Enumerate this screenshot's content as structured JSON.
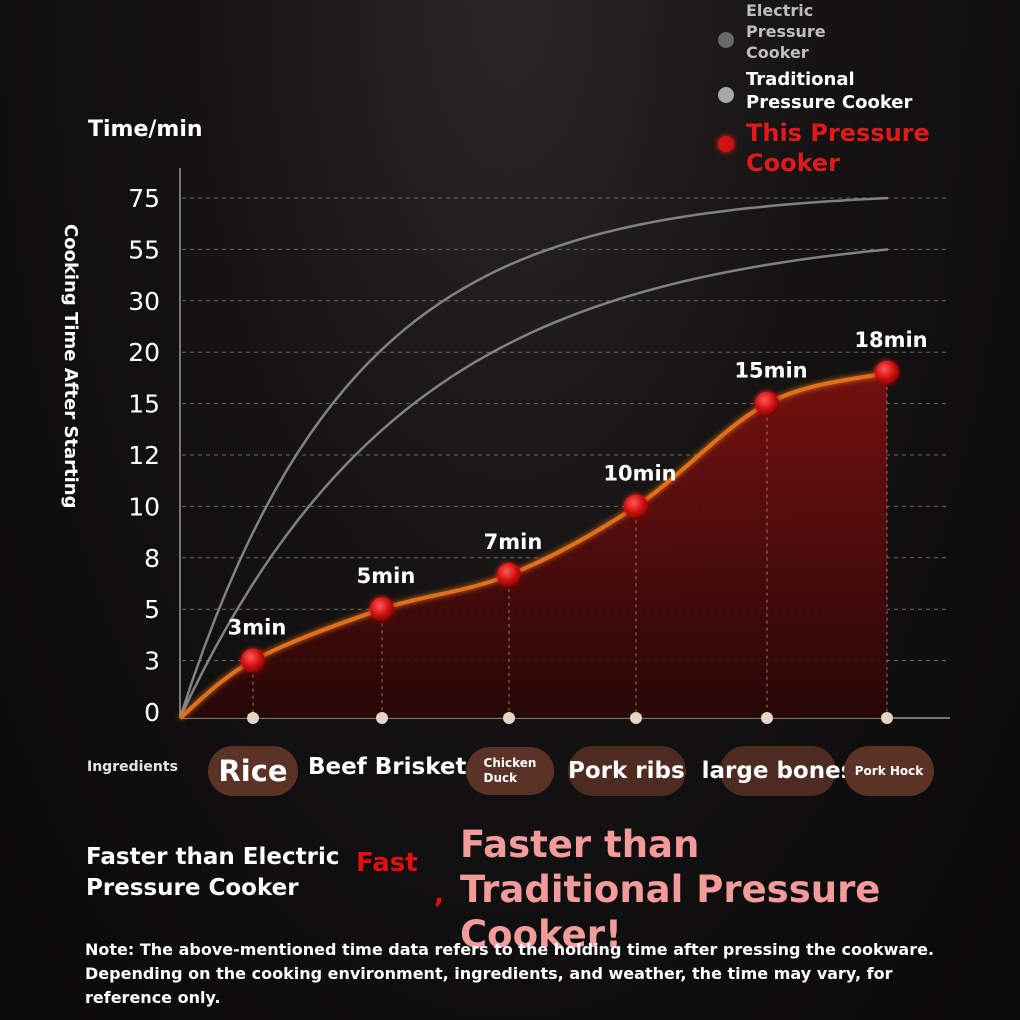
{
  "legend": [
    {
      "label": "Electric Pressure Cooker",
      "color": "#9a9a9a",
      "text_color": "#bfbfbf"
    },
    {
      "label": "Traditional Pressure Cooker",
      "color": "#c8c8c8",
      "text_color": "#ffffff"
    },
    {
      "label": "This Pressure Cooker",
      "color": "#d01010",
      "text_color": "#e01a1a"
    }
  ],
  "chart_data": {
    "type": "line",
    "ylabel_top": "Time/min",
    "ylabel_side": "Cooking Time After Starting",
    "y_ticks": [
      "75",
      "55",
      "30",
      "20",
      "15",
      "12",
      "10",
      "8",
      "5",
      "3",
      "0"
    ],
    "categories": [
      "Rice",
      "Beef Brisket",
      "Chicken Duck",
      "Pork ribs",
      "large bones",
      "Pork Hock"
    ],
    "series": [
      {
        "name": "This Pressure Cooker",
        "values": [
          3,
          5,
          7,
          10,
          15,
          18
        ],
        "labels": [
          "3min",
          "5min",
          "7min",
          "10min",
          "15min",
          "18min"
        ],
        "color": "#e0701a"
      },
      {
        "name": "Electric Pressure Cooker",
        "plateau": 75,
        "color": "#9a9a9a"
      },
      {
        "name": "Traditional Pressure Cooker",
        "plateau": 55,
        "color": "#8a8a8a"
      }
    ],
    "grid": true
  },
  "ingredients_label": "Ingredients",
  "ingredients": [
    {
      "label": "Rice",
      "pill": true,
      "size": "large"
    },
    {
      "label": "Beef Brisket",
      "pill": false
    },
    {
      "label": "Chicken Duck",
      "pill": true,
      "size": "tiny"
    },
    {
      "label": "Pork ribs",
      "pill": true
    },
    {
      "label": "large bones",
      "pill": true
    },
    {
      "label": "Pork Hock",
      "pill": true,
      "size": "tiny"
    }
  ],
  "slogan": {
    "left": "Faster than Electric Pressure Cooker",
    "fast": "Fast",
    "right": "Faster than Traditional Pressure Cooker!"
  },
  "note": "Note: The above-mentioned time data refers to the holding time after pressing the cookware. Depending on the cooking environment, ingredients, and weather, the time may vary, for reference only."
}
